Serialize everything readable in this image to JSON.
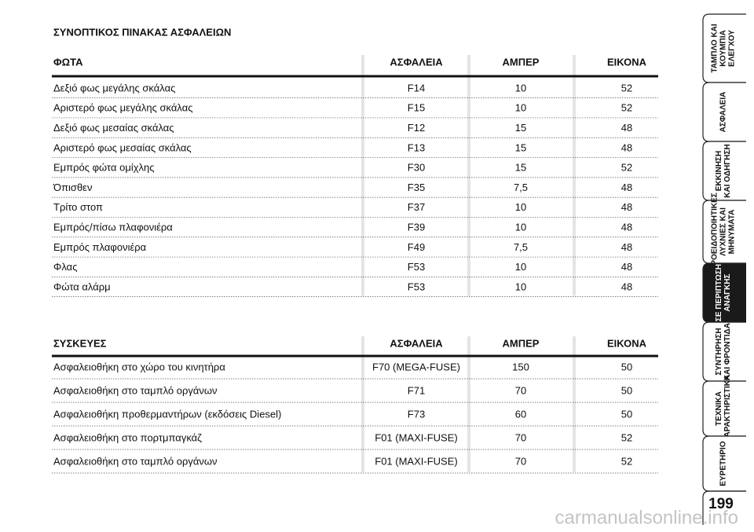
{
  "title": "ΣΥΝΟΠΤΙΚΟΣ ΠΙΝΑΚΑΣ ΑΣΦΑΛΕΙΩΝ",
  "tables": [
    {
      "header": [
        "ΦΩΤΑ",
        "ΑΣΦΑΛΕΙΑ",
        "ΑΜΠΕΡ",
        "ΕΙΚΟΝΑ"
      ],
      "rows": [
        [
          "Δεξιό φως μεγάλης σκάλας",
          "F14",
          "10",
          "52"
        ],
        [
          "Αριστερό φως μεγάλης σκάλας",
          "F15",
          "10",
          "52"
        ],
        [
          "Δεξιό φως μεσαίας σκάλας",
          "F12",
          "15",
          "48"
        ],
        [
          "Αριστερό φως μεσαίας σκάλας",
          "F13",
          "15",
          "48"
        ],
        [
          "Εμπρός φώτα ομίχλης",
          "F30",
          "15",
          "52"
        ],
        [
          "Όπισθεν",
          "F35",
          "7,5",
          "48"
        ],
        [
          "Τρίτο στοπ",
          "F37",
          "10",
          "48"
        ],
        [
          "Εμπρός/πίσω πλαφονιέρα",
          "F39",
          "10",
          "48"
        ],
        [
          "Εμπρός πλαφονιέρα",
          "F49",
          "7,5",
          "48"
        ],
        [
          "Φλας",
          "F53",
          "10",
          "48"
        ],
        [
          "Φώτα αλάρμ",
          "F53",
          "10",
          "48"
        ]
      ]
    },
    {
      "header": [
        "ΣΥΣΚΕΥΕΣ",
        "ΑΣΦΑΛΕΙΑ",
        "ΑΜΠΕΡ",
        "ΕΙΚΟΝΑ"
      ],
      "rows": [
        [
          "Ασφαλειοθήκη στο χώρο του κινητήρα",
          "F70 (MEGA-FUSE)",
          "150",
          "50"
        ],
        [
          "Ασφαλειοθήκη στο ταμπλό οργάνων",
          "F71",
          "70",
          "50"
        ],
        [
          "Ασφαλειοθήκη προθερμαντήρων (εκδόσεις Diesel)",
          "F73",
          "60",
          "50"
        ],
        [
          "Ασφαλειοθήκη στο πορτμπαγκάζ",
          "F01 (MAXI-FUSE)",
          "70",
          "52"
        ],
        [
          "Ασφαλειοθήκη στο ταμπλό οργάνων",
          "F01 (MAXI-FUSE)",
          "70",
          "52"
        ]
      ]
    }
  ],
  "side_tabs": [
    {
      "lines": [
        "ΤΑΜΠΛΟ ΚΑΙ",
        "ΚΟΥΜΠΙΑ",
        "ΕΛΕΓΧΟΥ"
      ]
    },
    {
      "lines": [
        "ΑΣΦΑΛΕΙΑ"
      ]
    },
    {
      "lines": [
        "ΕΚΚΙΝΗΣΗ",
        "ΚΑΙ ΟΔΗΓΗΣΗ"
      ]
    },
    {
      "lines": [
        "ΠΡΟΕΙΔΟΠΟΙΗΤΙΚΕΣ",
        "ΛΥΧΝΙΕΣ ΚΑΙ",
        "ΜΗΝΥΜΑΤΑ"
      ]
    },
    {
      "lines": [
        "ΣΕ ΠΕΡΙΠΤΩΣΗ",
        "ΑΝΑΓΚΗΣ"
      ],
      "active": true
    },
    {
      "lines": [
        "ΣΥΝΤΗΡΗΣΗ",
        "ΚΑΙ ΦΡΟΝΤΙΔΑ"
      ]
    },
    {
      "lines": [
        "ΤΕΧΝΙΚΑ",
        "ΧΑΡΑΚΤΗΡΙΣΤΙΚΑ"
      ]
    },
    {
      "lines": [
        "ΕΥΡΕΤΗΡΙΟ"
      ]
    }
  ],
  "page_number": "199",
  "watermark": "carmanualsonline.info"
}
